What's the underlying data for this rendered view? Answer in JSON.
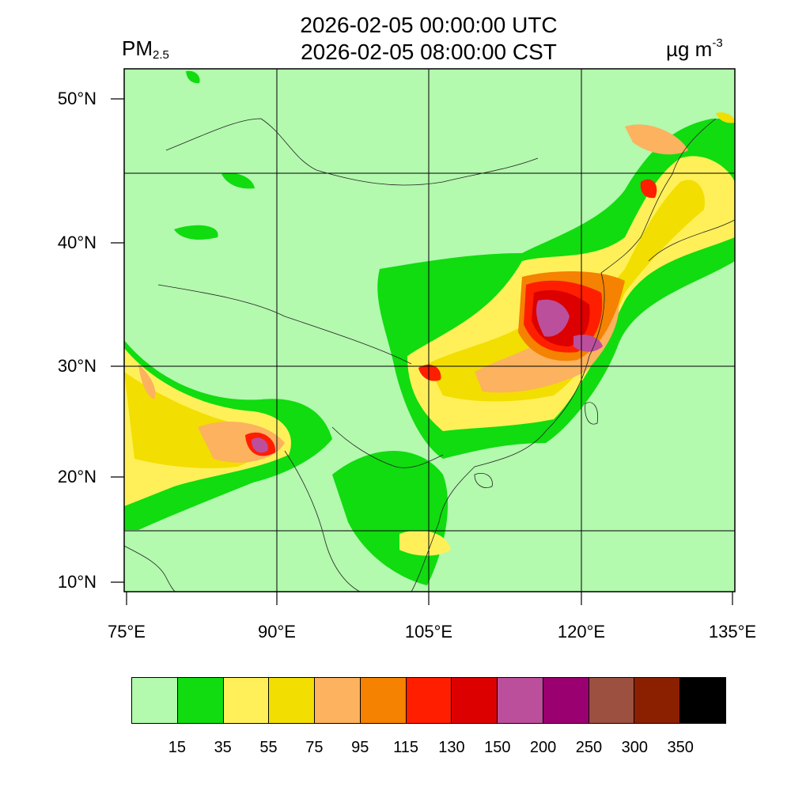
{
  "title": {
    "line1": "2026-02-05 00:00:00 UTC",
    "line2": "2026-02-05 08:00:00 CST"
  },
  "variable": {
    "name": "PM",
    "subscript": "2.5"
  },
  "unit": {
    "base": "µg m",
    "exponent": "-3"
  },
  "axes": {
    "lat_labels": [
      "50°N",
      "40°N",
      "30°N",
      "20°N",
      "10°N"
    ],
    "lon_labels": [
      "75°E",
      "90°E",
      "105°E",
      "120°E",
      "135°E"
    ]
  },
  "colorbar": {
    "colors": [
      "#b3f9ae",
      "#10dc10",
      "#fff05a",
      "#f2de00",
      "#fcb25e",
      "#f58200",
      "#ff1e00",
      "#dc0000",
      "#bb4f9c",
      "#9b0070",
      "#9b5040",
      "#8b2000",
      "#000000"
    ],
    "labels": [
      "15",
      "35",
      "55",
      "75",
      "95",
      "115",
      "130",
      "150",
      "200",
      "250",
      "300",
      "350"
    ]
  }
}
